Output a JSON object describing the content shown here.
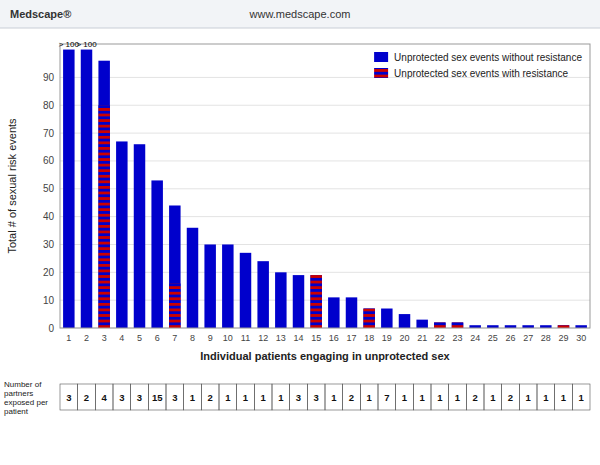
{
  "chart_data": {
    "type": "bar",
    "title": "www.medscape.com",
    "subtitle": "Medscape®",
    "x_label": "Individual patients engaging in unprotected sex",
    "y_label": "Total # of sexual risk events",
    "categories": [
      "1",
      "2",
      "3",
      "4",
      "5",
      "6",
      "7",
      "8",
      "9",
      "10",
      "11",
      "12",
      "13",
      "14",
      "15",
      "16",
      "17",
      "18",
      "19",
      "20",
      "21",
      "22",
      "23",
      "24",
      "25",
      "26",
      "27",
      "28",
      "29",
      "30"
    ],
    "series": [
      {
        "name": "Unprotected sex events without resistance",
        "color": "#0000CC",
        "values": [
          100,
          100,
          96,
          67,
          66,
          53,
          44,
          36,
          30,
          30,
          27,
          24,
          20,
          19,
          19,
          11,
          11,
          7,
          7,
          5,
          3,
          2,
          2,
          1,
          1,
          1,
          1,
          1,
          1,
          1
        ]
      },
      {
        "name": "Unprotected sex events with resistance",
        "color": "#CC0000",
        "values": [
          0,
          0,
          80,
          0,
          0,
          0,
          16,
          0,
          0,
          0,
          0,
          0,
          0,
          0,
          19,
          0,
          0,
          7,
          0,
          0,
          0,
          2,
          2,
          0,
          0,
          0,
          0,
          0,
          1,
          0
        ]
      }
    ],
    "stacked": false,
    "annotations": [
      {
        "text": "> 100",
        "category": "1",
        "y": 100
      },
      {
        "text": "> 100",
        "category": "2",
        "y": 100
      }
    ],
    "table": {
      "label": "Number of\npartners\nexposed per\npatient",
      "values": [
        3,
        2,
        4,
        3,
        3,
        15,
        3,
        1,
        2,
        1,
        1,
        1,
        1,
        3,
        3,
        1,
        2,
        1,
        7,
        1,
        1,
        1,
        1,
        2,
        1,
        2,
        1,
        1,
        1,
        1
      ]
    },
    "ylim": [
      0,
      102
    ],
    "yticks": [
      0,
      10,
      20,
      30,
      40,
      50,
      60,
      70,
      80,
      90
    ],
    "grid": true,
    "legend": "upper right"
  }
}
